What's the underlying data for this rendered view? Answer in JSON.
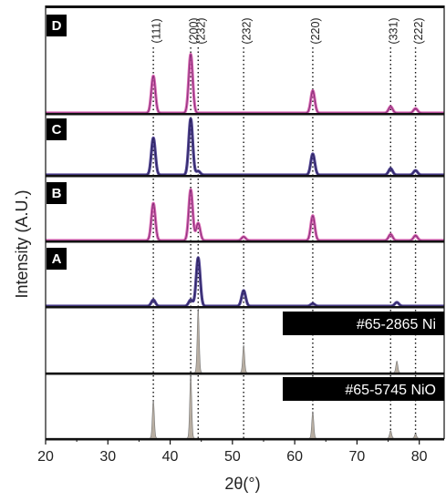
{
  "chart_data": {
    "type": "line",
    "xlabel": "2θ(°)",
    "ylabel": "Intensity (A.U.)",
    "xlim": [
      20,
      84
    ],
    "xticks": [
      20,
      30,
      40,
      50,
      60,
      70,
      80
    ],
    "reflections": [
      {
        "label": "(111)",
        "x": 37.3
      },
      {
        "label": "(200)",
        "x": 43.3
      },
      {
        "label": "(232)",
        "x": 44.5
      },
      {
        "label": "(232)",
        "x": 51.8
      },
      {
        "label": "(220)",
        "x": 62.9
      },
      {
        "label": "(331)",
        "x": 75.4
      },
      {
        "label": "(222)",
        "x": 79.4
      }
    ],
    "colors": {
      "magenta": "#d451a8",
      "purple": "#3a2a86",
      "reference": "#b8aea2",
      "frame": "#111111"
    },
    "series": [
      {
        "name": "D",
        "style": "magenta",
        "peaks": [
          [
            37.3,
            0.58
          ],
          [
            43.3,
            0.92
          ],
          [
            62.9,
            0.35
          ],
          [
            75.4,
            0.1
          ],
          [
            79.4,
            0.07
          ]
        ]
      },
      {
        "name": "C",
        "style": "purple",
        "peaks": [
          [
            37.3,
            0.58
          ],
          [
            43.3,
            0.88
          ],
          [
            44.5,
            0.06
          ],
          [
            62.9,
            0.33
          ],
          [
            75.4,
            0.1
          ],
          [
            79.4,
            0.07
          ]
        ]
      },
      {
        "name": "B",
        "style": "magenta",
        "peaks": [
          [
            37.3,
            0.6
          ],
          [
            43.3,
            0.82
          ],
          [
            44.5,
            0.28
          ],
          [
            51.8,
            0.06
          ],
          [
            62.9,
            0.4
          ],
          [
            75.4,
            0.1
          ],
          [
            79.4,
            0.08
          ]
        ]
      },
      {
        "name": "A",
        "style": "purple",
        "peaks": [
          [
            37.3,
            0.1
          ],
          [
            43.3,
            0.1
          ],
          [
            44.5,
            0.78
          ],
          [
            51.8,
            0.25
          ],
          [
            62.9,
            0.04
          ],
          [
            76.4,
            0.06
          ]
        ]
      },
      {
        "name": "#65-2865 Ni",
        "style": "reference",
        "peaks": [
          [
            44.5,
            1.0
          ],
          [
            51.8,
            0.43
          ],
          [
            76.4,
            0.18
          ]
        ]
      },
      {
        "name": "#65-5745 NiO",
        "style": "reference",
        "peaks": [
          [
            37.3,
            0.6
          ],
          [
            43.3,
            1.0
          ],
          [
            62.9,
            0.42
          ],
          [
            75.4,
            0.12
          ],
          [
            79.4,
            0.07
          ]
        ]
      }
    ]
  }
}
